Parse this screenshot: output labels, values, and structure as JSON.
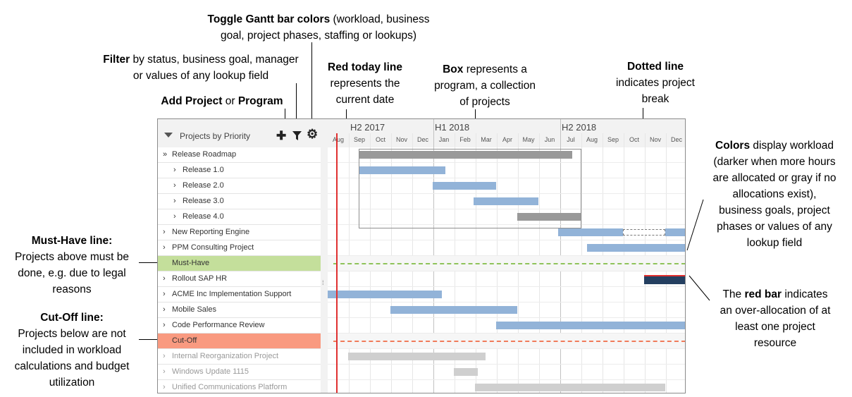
{
  "annotations": {
    "toggle": {
      "bold": "Toggle Gantt bar colors",
      "rest1": " (workload, business",
      "line2": "goal, project phases, staffing or lookups)"
    },
    "filter": {
      "bold": "Filter",
      "rest1": " by status, business goal, manager",
      "line2": "or values of any lookup field"
    },
    "add": {
      "bold1": "Add Project",
      "mid": " or ",
      "bold2": "Program"
    },
    "today": {
      "bold": "Red today line",
      "line2": "represents the",
      "line3": "current date"
    },
    "box": {
      "bold": "Box",
      "rest1": " represents a",
      "line2": "program, a collection",
      "line3": "of projects"
    },
    "dotted": {
      "bold": "Dotted line",
      "line2": "indicates project",
      "line3": "break"
    },
    "colors": {
      "bold": "Colors",
      "rest1": " display workload",
      "line2": "(darker when more hours",
      "line3": "are allocated or gray if no",
      "line4": "allocations exist),",
      "line5": "business goals, project",
      "line6": "phases or values of any",
      "line7": "lookup field"
    },
    "musthave": {
      "bold": "Must-Have line:",
      "line2": "Projects above must be",
      "line3": "done, e.g. due to legal",
      "line4": "reasons"
    },
    "redbar": {
      "pre": "The ",
      "bold": "red bar",
      "rest1": " indicates",
      "line2": "an over-allocation of at",
      "line3": "least one project",
      "line4": "resource"
    },
    "cutoff": {
      "bold": "Cut-Off line:",
      "line2": "Projects below are not",
      "line3": "included in workload",
      "line4": "calculations and budget",
      "line5": "utilization"
    }
  },
  "left_panel": {
    "title": "Projects by Priority",
    "tools": {
      "add_icon": "plus-icon",
      "filter_icon": "funnel-icon",
      "settings_icon": "gear-icon"
    },
    "rows": [
      {
        "label": "Release Roadmap",
        "chevron": "»",
        "type": "program",
        "state": "expanded"
      },
      {
        "label": "Release 1.0",
        "chevron": "›",
        "type": "child"
      },
      {
        "label": "Release 2.0",
        "chevron": "›",
        "type": "child"
      },
      {
        "label": "Release 3.0",
        "chevron": "›",
        "type": "child"
      },
      {
        "label": "Release 4.0",
        "chevron": "›",
        "type": "child"
      },
      {
        "label": "New Reporting Engine",
        "chevron": "›",
        "type": "project"
      },
      {
        "label": "PPM Consulting Project",
        "chevron": "›",
        "type": "project"
      },
      {
        "label": "Must-Have",
        "chevron": "",
        "type": "must"
      },
      {
        "label": "Rollout SAP HR",
        "chevron": "›",
        "type": "project"
      },
      {
        "label": "ACME Inc Implementation Support",
        "chevron": "›",
        "type": "project"
      },
      {
        "label": "Mobile Sales",
        "chevron": "›",
        "type": "project"
      },
      {
        "label": "Code Performance Review",
        "chevron": "›",
        "type": "project"
      },
      {
        "label": "Cut-Off",
        "chevron": "",
        "type": "cut"
      },
      {
        "label": "Internal Reorganization Project",
        "chevron": "›",
        "type": "muted"
      },
      {
        "label": "Windows Update 1115",
        "chevron": "›",
        "type": "muted"
      },
      {
        "label": "Unified Communications Platform",
        "chevron": "›",
        "type": "muted"
      }
    ]
  },
  "gantt": {
    "halves": [
      "H2 2017",
      "H1 2018",
      "H2 2018"
    ],
    "months": [
      "Aug",
      "Sep",
      "Oct",
      "Nov",
      "Dec",
      "Jan",
      "Feb",
      "Mar",
      "Apr",
      "May",
      "Jun",
      "Jul",
      "Aug",
      "Sep",
      "Oct",
      "Nov",
      "Dec"
    ],
    "today_month": 0.4,
    "colors": {
      "today_line": "#e03030",
      "must_line": "#8fc35a",
      "cut_line": "#f07b5a",
      "bar_default": "#92b3d8",
      "bar_program": "#999999",
      "bar_none": "#cfcfcf",
      "bar_heavy": "#243f60",
      "overallocation": "#e03030"
    },
    "bars": [
      {
        "row": 0,
        "start": 1.45,
        "end": 11.55,
        "color": "gray"
      },
      {
        "row": 1,
        "start": 1.45,
        "end": 5.55,
        "color": "blue"
      },
      {
        "row": 2,
        "start": 4.95,
        "end": 7.95,
        "color": "blue"
      },
      {
        "row": 3,
        "start": 6.9,
        "end": 9.95,
        "color": "blue"
      },
      {
        "row": 4,
        "start": 8.95,
        "end": 11.95,
        "color": "gray"
      },
      {
        "row": 5,
        "start": 10.9,
        "end": 13.95,
        "color": "blue"
      },
      {
        "row": 5,
        "start": 15.95,
        "end": 17.0,
        "color": "blue"
      },
      {
        "row": 6,
        "start": 12.25,
        "end": 17.0,
        "color": "blue"
      },
      {
        "row": 8,
        "start": 14.95,
        "end": 17.0,
        "color": "navy",
        "overallocated": true
      },
      {
        "row": 9,
        "start": 0.0,
        "end": 5.4,
        "color": "blue"
      },
      {
        "row": 10,
        "start": 2.95,
        "end": 8.95,
        "color": "blue"
      },
      {
        "row": 11,
        "start": 7.95,
        "end": 17.0,
        "color": "blue"
      },
      {
        "row": 13,
        "start": 0.95,
        "end": 7.45,
        "color": "lgray"
      },
      {
        "row": 14,
        "start": 5.95,
        "end": 7.1,
        "color": "lgray"
      },
      {
        "row": 15,
        "start": 6.95,
        "end": 15.95,
        "color": "lgray"
      }
    ],
    "break": {
      "row": 5,
      "start": 13.95,
      "end": 15.95
    },
    "program_box": {
      "row_start": 0,
      "row_end": 4,
      "start": 1.45,
      "end": 12.0
    }
  }
}
